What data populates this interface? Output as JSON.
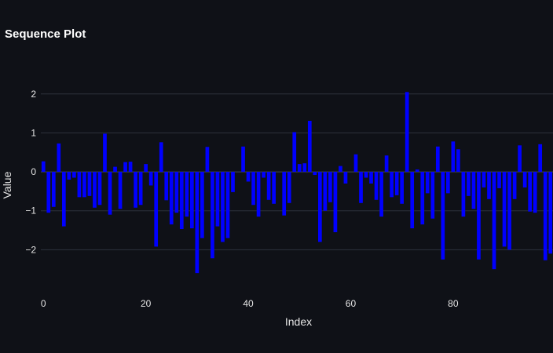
{
  "chart_data": {
    "type": "bar",
    "title": "Sequence Plot",
    "xlabel": "Index",
    "ylabel": "Value",
    "xlim": [
      -0.5,
      99.5
    ],
    "ylim": [
      -3.0,
      2.6
    ],
    "x_ticks": [
      0,
      20,
      40,
      60,
      80
    ],
    "y_ticks": [
      -2,
      -1,
      0,
      1,
      2
    ],
    "grid": true,
    "bar_color": "#0000ff",
    "series": [
      {
        "x": [
          0,
          1,
          2,
          3,
          4,
          5,
          6,
          7,
          8,
          9,
          10,
          11,
          12,
          13,
          14,
          15,
          16,
          17,
          18,
          19,
          20,
          21,
          22,
          23,
          24,
          25,
          26,
          27,
          28,
          29,
          30,
          31,
          32,
          33,
          34,
          35,
          36,
          37,
          38,
          39,
          40,
          41,
          42,
          43,
          44,
          45,
          46,
          47,
          48,
          49,
          50,
          51,
          52,
          53,
          54,
          55,
          56,
          57,
          58,
          59,
          60,
          61,
          62,
          63,
          64,
          65,
          66,
          67,
          68,
          69,
          70,
          71,
          72,
          73,
          74,
          75,
          76,
          77,
          78,
          79,
          80,
          81,
          82,
          83,
          84,
          85,
          86,
          87,
          88,
          89,
          90,
          91,
          92,
          93,
          94,
          95,
          96,
          97,
          98,
          99
        ],
        "values": [
          0.27,
          -1.05,
          -0.9,
          0.73,
          -1.4,
          -0.2,
          -0.15,
          -0.65,
          -0.65,
          -0.62,
          -0.92,
          -0.85,
          0.98,
          -1.1,
          0.13,
          -0.95,
          0.25,
          0.26,
          -0.92,
          -0.85,
          0.2,
          -0.35,
          -1.92,
          0.76,
          -0.73,
          -1.35,
          -1.05,
          -1.47,
          -1.15,
          -1.45,
          -2.6,
          -1.7,
          0.64,
          -2.22,
          -1.4,
          -1.8,
          -1.7,
          -0.52,
          0.0,
          0.65,
          -0.25,
          -0.85,
          -1.15,
          -0.15,
          -0.72,
          -0.82,
          0.0,
          -1.12,
          -0.8,
          1.02,
          0.2,
          0.22,
          1.31,
          -0.08,
          -1.8,
          -1.0,
          -0.78,
          -1.55,
          0.15,
          -0.3,
          0.0,
          0.45,
          -0.8,
          -0.15,
          -0.3,
          -0.72,
          -1.15,
          0.42,
          -0.65,
          -0.6,
          -0.82,
          2.05,
          -1.45,
          0.06,
          -1.35,
          -0.55,
          -1.2,
          0.65,
          -2.25,
          -0.55,
          0.78,
          0.58,
          -1.15,
          -0.62,
          -0.95,
          -2.25,
          -0.4,
          -0.7,
          -2.5,
          -0.42,
          -1.92,
          -2.0,
          -0.7,
          0.68,
          -0.4,
          -1.02,
          -1.05,
          0.71,
          -2.27,
          -2.1
        ]
      }
    ]
  }
}
